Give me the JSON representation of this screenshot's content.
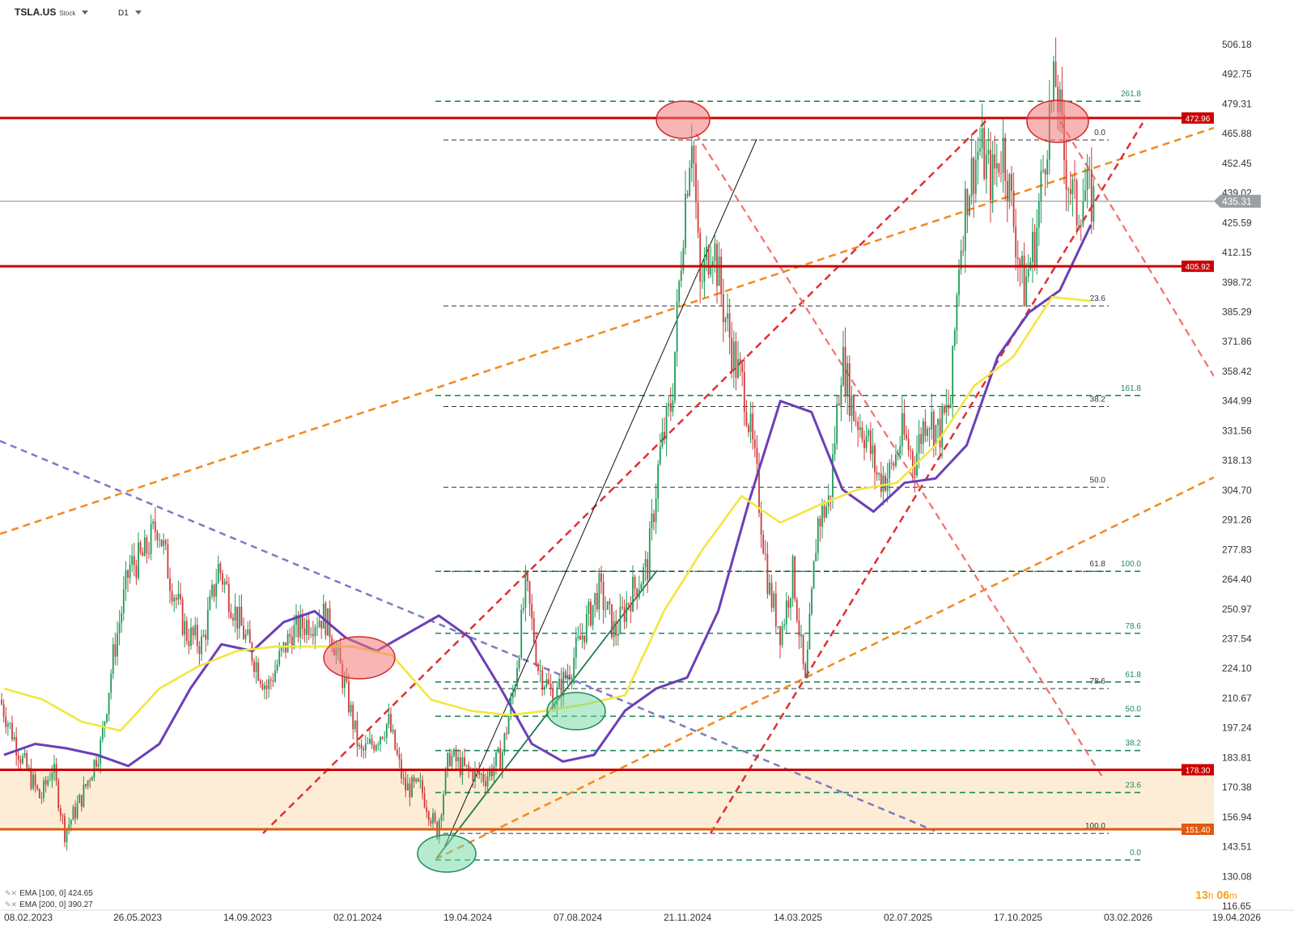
{
  "header": {
    "symbol": "TSLA.US",
    "type": "Stock",
    "interval": "D1"
  },
  "legend": [
    {
      "label": "EMA [100, 0]",
      "value": "424.65"
    },
    {
      "label": "EMA [200, 0]",
      "value": "390.27"
    }
  ],
  "timer": {
    "h": "13",
    "hu": "h",
    "m": "06",
    "mu": "m"
  },
  "chart_data": {
    "type": "candlestick",
    "x_labels": [
      "08.02.2023",
      "26.05.2023",
      "14.09.2023",
      "02.01.2024",
      "19.04.2024",
      "07.08.2024",
      "21.11.2024",
      "14.03.2025",
      "02.07.2025",
      "17.10.2025",
      "03.02.2026",
      "19.04.2026"
    ],
    "y_ticks": [
      "506.18",
      "492.75",
      "479.31",
      "465.88",
      "452.45",
      "439.02",
      "425.59",
      "412.15",
      "398.72",
      "385.29",
      "371.86",
      "358.42",
      "344.99",
      "331.56",
      "318.13",
      "304.70",
      "291.26",
      "277.83",
      "264.40",
      "250.97",
      "237.54",
      "224.10",
      "210.67",
      "197.24",
      "183.81",
      "170.38",
      "156.94",
      "143.51",
      "130.08",
      "116.65"
    ],
    "y_range": [
      116.65,
      506.18
    ],
    "current_price": "435.31",
    "levels": [
      {
        "value": 472.96,
        "label": "472.96",
        "color": "#cc0000"
      },
      {
        "value": 405.92,
        "label": "405.92",
        "color": "#cc0000"
      },
      {
        "value": 178.3,
        "label": "178.30",
        "color": "#cc0000"
      },
      {
        "value": 151.4,
        "label": "151.40",
        "color": "#e05a10"
      }
    ],
    "fib_green": [
      {
        "label": "261.8",
        "value": 480.5
      },
      {
        "label": "161.8",
        "value": 347.5
      },
      {
        "label": "100.0",
        "value": 268.0
      },
      {
        "label": "78.6",
        "value": 240.0
      },
      {
        "label": "61.8",
        "value": 218.0
      },
      {
        "label": "50.0",
        "value": 202.5
      },
      {
        "label": "38.2",
        "value": 187.0
      },
      {
        "label": "23.6",
        "value": 168.0
      },
      {
        "label": "0.0",
        "value": 137.5
      }
    ],
    "fib_black": [
      {
        "label": "0.0",
        "value": 463.0
      },
      {
        "label": "23.6",
        "value": 388.0
      },
      {
        "label": "38.2",
        "value": 342.5
      },
      {
        "label": "50.0",
        "value": 306.0
      },
      {
        "label": "61.8",
        "value": 268.0
      },
      {
        "label": "78.6",
        "value": 215.0
      },
      {
        "label": "100.0",
        "value": 149.5
      }
    ],
    "series": [
      {
        "name": "EMA [100, 0]",
        "color": "#6b3fb8",
        "values": [
          185,
          190,
          188,
          185,
          180,
          190,
          215,
          235,
          232,
          245,
          250,
          238,
          232,
          240,
          248,
          238,
          215,
          190,
          182,
          185,
          205,
          215,
          220,
          250,
          300,
          345,
          340,
          305,
          295,
          308,
          310,
          325,
          365,
          385,
          395,
          424.65
        ]
      },
      {
        "name": "EMA [200, 0]",
        "color": "#f2e640",
        "values": [
          215,
          210,
          200,
          196,
          215,
          225,
          232,
          234,
          234,
          234,
          230,
          210,
          205,
          203,
          205,
          208,
          212,
          250,
          278,
          302,
          290,
          298,
          305,
          308,
          325,
          352,
          365,
          392,
          390.27
        ]
      }
    ],
    "ohlc_path": [
      [
        0,
        210
      ],
      [
        25,
        185
      ],
      [
        50,
        165
      ],
      [
        65,
        180
      ],
      [
        80,
        150
      ],
      [
        100,
        165
      ],
      [
        125,
        190
      ],
      [
        140,
        230
      ],
      [
        160,
        270
      ],
      [
        178,
        275
      ],
      [
        195,
        290
      ],
      [
        210,
        265
      ],
      [
        230,
        240
      ],
      [
        250,
        235
      ],
      [
        270,
        270
      ],
      [
        290,
        250
      ],
      [
        310,
        232
      ],
      [
        330,
        215
      ],
      [
        345,
        228
      ],
      [
        360,
        240
      ],
      [
        380,
        245
      ],
      [
        400,
        248
      ],
      [
        410,
        240
      ],
      [
        430,
        210
      ],
      [
        445,
        185
      ],
      [
        460,
        190
      ],
      [
        480,
        200
      ],
      [
        500,
        170
      ],
      [
        520,
        170
      ],
      [
        540,
        150
      ],
      [
        555,
        185
      ],
      [
        575,
        178
      ],
      [
        600,
        175
      ],
      [
        620,
        185
      ],
      [
        635,
        215
      ],
      [
        650,
        262
      ],
      [
        665,
        225
      ],
      [
        685,
        210
      ],
      [
        705,
        225
      ],
      [
        720,
        240
      ],
      [
        740,
        260
      ],
      [
        760,
        240
      ],
      [
        780,
        258
      ],
      [
        800,
        270
      ],
      [
        815,
        320
      ],
      [
        830,
        345
      ],
      [
        845,
        430
      ],
      [
        855,
        470
      ],
      [
        865,
        395
      ],
      [
        880,
        420
      ],
      [
        895,
        385
      ],
      [
        910,
        360
      ],
      [
        920,
        350
      ],
      [
        935,
        310
      ],
      [
        950,
        260
      ],
      [
        965,
        240
      ],
      [
        980,
        268
      ],
      [
        995,
        215
      ],
      [
        1010,
        290
      ],
      [
        1025,
        300
      ],
      [
        1040,
        365
      ],
      [
        1055,
        340
      ],
      [
        1070,
        330
      ],
      [
        1085,
        310
      ],
      [
        1100,
        312
      ],
      [
        1115,
        330
      ],
      [
        1130,
        318
      ],
      [
        1145,
        340
      ],
      [
        1160,
        330
      ],
      [
        1175,
        345
      ],
      [
        1185,
        410
      ],
      [
        1195,
        440
      ],
      [
        1210,
        460
      ],
      [
        1225,
        445
      ],
      [
        1240,
        460
      ],
      [
        1255,
        420
      ],
      [
        1265,
        395
      ],
      [
        1280,
        420
      ],
      [
        1295,
        470
      ],
      [
        1305,
        490
      ],
      [
        1315,
        455
      ],
      [
        1330,
        430
      ],
      [
        1340,
        440
      ],
      [
        1350,
        435.31
      ]
    ]
  }
}
